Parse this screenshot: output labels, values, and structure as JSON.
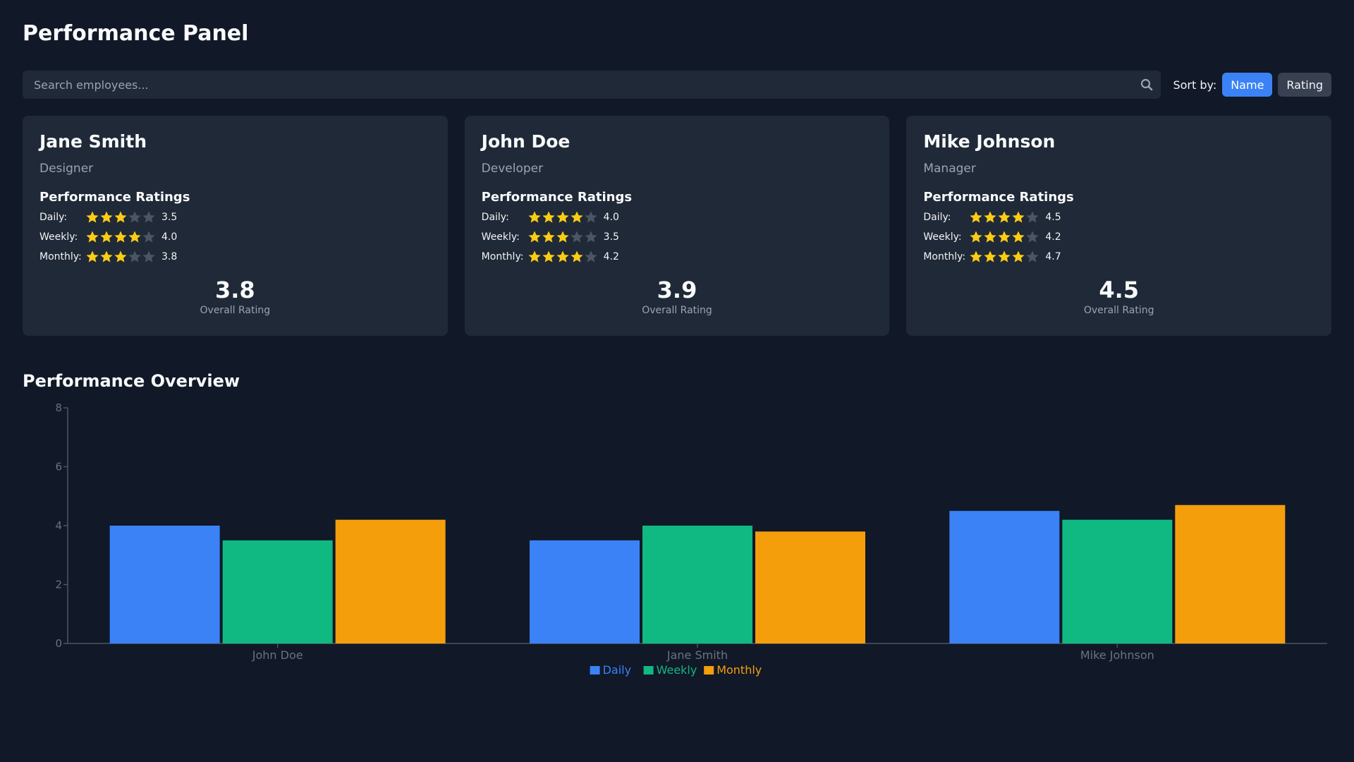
{
  "header": {
    "title": "Performance Panel"
  },
  "search": {
    "placeholder": "Search employees...",
    "value": ""
  },
  "sort": {
    "label": "Sort by:",
    "options": [
      "Name",
      "Rating"
    ],
    "active": "Name"
  },
  "ratings_heading": "Performance Ratings",
  "rating_labels": {
    "daily": "Daily:",
    "weekly": "Weekly:",
    "monthly": "Monthly:"
  },
  "overall_label": "Overall Rating",
  "employees": [
    {
      "name": "Jane Smith",
      "role": "Designer",
      "daily": "3.5",
      "weekly": "4.0",
      "monthly": "3.8",
      "overall": "3.8"
    },
    {
      "name": "John Doe",
      "role": "Developer",
      "daily": "4.0",
      "weekly": "3.5",
      "monthly": "4.2",
      "overall": "3.9"
    },
    {
      "name": "Mike Johnson",
      "role": "Manager",
      "daily": "4.5",
      "weekly": "4.2",
      "monthly": "4.7",
      "overall": "4.5"
    }
  ],
  "overview": {
    "title": "Performance Overview"
  },
  "colors": {
    "star_filled": "#facc15",
    "star_empty": "#4b5563",
    "accent": "#3b82f6"
  },
  "chart_data": {
    "type": "bar",
    "categories": [
      "John Doe",
      "Jane Smith",
      "Mike Johnson"
    ],
    "series": [
      {
        "name": "Daily",
        "values": [
          4.0,
          3.5,
          4.5
        ],
        "color": "#3b82f6"
      },
      {
        "name": "Weekly",
        "values": [
          3.5,
          4.0,
          4.2
        ],
        "color": "#10b981"
      },
      {
        "name": "Monthly",
        "values": [
          4.2,
          3.8,
          4.7
        ],
        "color": "#f59e0b"
      }
    ],
    "yticks": [
      0,
      2,
      4,
      6,
      8
    ],
    "ylim": [
      0,
      8
    ],
    "legend": "bottom-center"
  }
}
